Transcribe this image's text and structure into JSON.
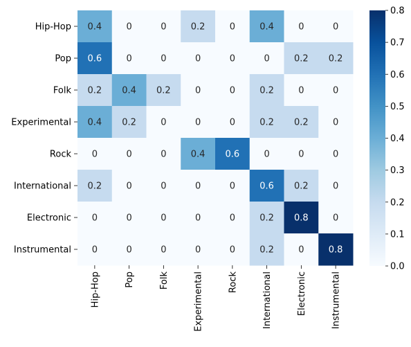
{
  "chart_data": {
    "type": "heatmap",
    "title": "",
    "xlabel": "",
    "ylabel": "",
    "rows": [
      "Hip-Hop",
      "Pop",
      "Folk",
      "Experimental",
      "Rock",
      "International",
      "Electronic",
      "Instrumental"
    ],
    "columns": [
      "Hip-Hop",
      "Pop",
      "Folk",
      "Experimental",
      "Rock",
      "International",
      "Electronic",
      "Instrumental"
    ],
    "values": [
      [
        0.4,
        0,
        0,
        0.2,
        0,
        0.4,
        0,
        0
      ],
      [
        0.6,
        0,
        0,
        0,
        0,
        0,
        0.2,
        0.2
      ],
      [
        0.2,
        0.4,
        0.2,
        0,
        0,
        0.2,
        0,
        0
      ],
      [
        0.4,
        0.2,
        0,
        0,
        0,
        0.2,
        0.2,
        0
      ],
      [
        0,
        0,
        0,
        0.4,
        0.6,
        0,
        0,
        0
      ],
      [
        0.2,
        0,
        0,
        0,
        0,
        0.6,
        0.2,
        0
      ],
      [
        0,
        0,
        0,
        0,
        0,
        0.2,
        0.8,
        0
      ],
      [
        0,
        0,
        0,
        0,
        0,
        0.2,
        0,
        0.8
      ]
    ],
    "cell_labels": [
      [
        "0.4",
        "0",
        "0",
        "0.2",
        "0",
        "0.4",
        "0",
        "0"
      ],
      [
        "0.6",
        "0",
        "0",
        "0",
        "0",
        "0",
        "0.2",
        "0.2"
      ],
      [
        "0.2",
        "0.4",
        "0.2",
        "0",
        "0",
        "0.2",
        "0",
        "0"
      ],
      [
        "0.4",
        "0.2",
        "0",
        "0",
        "0",
        "0.2",
        "0.2",
        "0"
      ],
      [
        "0",
        "0",
        "0",
        "0.4",
        "0.6",
        "0",
        "0",
        "0"
      ],
      [
        "0.2",
        "0",
        "0",
        "0",
        "0",
        "0.6",
        "0.2",
        "0"
      ],
      [
        "0",
        "0",
        "0",
        "0",
        "0",
        "0.2",
        "0.8",
        "0"
      ],
      [
        "0",
        "0",
        "0",
        "0",
        "0",
        "0.2",
        "0",
        "0.8"
      ]
    ],
    "colormap": "Blues",
    "vmin": 0,
    "vmax": 0.8,
    "colorbar": {
      "position": "right",
      "ticks": [
        0,
        0.1,
        0.2,
        0.3,
        0.4,
        0.5,
        0.6,
        0.7,
        0.8
      ],
      "tick_labels": [
        "0.0",
        "0.1",
        "0.2",
        "0.3",
        "0.4",
        "0.5",
        "0.6",
        "0.7",
        "0.8"
      ]
    },
    "colors": {
      "low": "#f7fbff",
      "high": "#08306b",
      "text_dark": "#262626",
      "text_light": "#ffffff"
    }
  }
}
